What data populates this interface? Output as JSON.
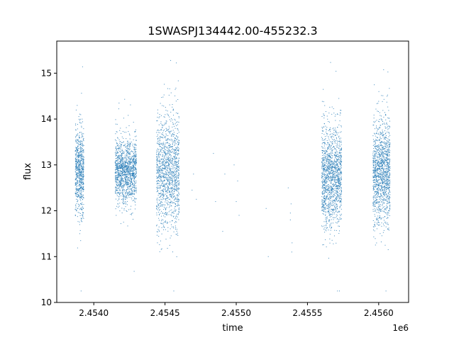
{
  "chart_data": {
    "type": "scatter",
    "title": "1SWASPJ134442.00-455232.3",
    "xlabel": "time",
    "ylabel": "flux",
    "x_offset_label": "1e6",
    "xlim": [
      2453740,
      2456210
    ],
    "ylim": [
      10.0,
      15.7
    ],
    "x_ticks": [
      2454000,
      2454500,
      2455000,
      2455500,
      2456000
    ],
    "x_tick_labels": [
      "2.4540",
      "2.4545",
      "2.4550",
      "2.4555",
      "2.4560"
    ],
    "y_ticks": [
      10,
      11,
      12,
      13,
      14,
      15
    ],
    "y_tick_labels": [
      "10",
      "11",
      "12",
      "13",
      "14",
      "15"
    ],
    "marker_color": "#1f77b4",
    "grid": false,
    "legend": "none",
    "clusters": [
      {
        "x_range": [
          2453870,
          2453930
        ],
        "y_center": 12.85,
        "y_spread": 0.45,
        "count": 700
      },
      {
        "x_range": [
          2454150,
          2454300
        ],
        "y_center": 12.85,
        "y_spread": 0.35,
        "count": 1300
      },
      {
        "x_range": [
          2454440,
          2454600
        ],
        "y_center": 12.85,
        "y_spread": 0.6,
        "count": 1300
      },
      {
        "x_range": [
          2455600,
          2455740
        ],
        "y_center": 12.75,
        "y_spread": 0.55,
        "count": 1400
      },
      {
        "x_range": [
          2455960,
          2456080
        ],
        "y_center": 12.85,
        "y_spread": 0.55,
        "count": 1300
      }
    ],
    "sparse_points": [
      [
        2454690,
        12.45
      ],
      [
        2454700,
        12.8
      ],
      [
        2454720,
        12.25
      ],
      [
        2454840,
        13.25
      ],
      [
        2454855,
        12.2
      ],
      [
        2454905,
        11.55
      ],
      [
        2454920,
        12.8
      ],
      [
        2454985,
        13.0
      ],
      [
        2455000,
        12.2
      ],
      [
        2455010,
        12.65
      ],
      [
        2455020,
        11.9
      ],
      [
        2455210,
        12.05
      ],
      [
        2455225,
        11.0
      ],
      [
        2455365,
        12.5
      ],
      [
        2455380,
        11.8
      ],
      [
        2455380,
        11.95
      ],
      [
        2455385,
        12.15
      ],
      [
        2455390,
        11.1
      ],
      [
        2455392,
        11.3
      ]
    ]
  }
}
